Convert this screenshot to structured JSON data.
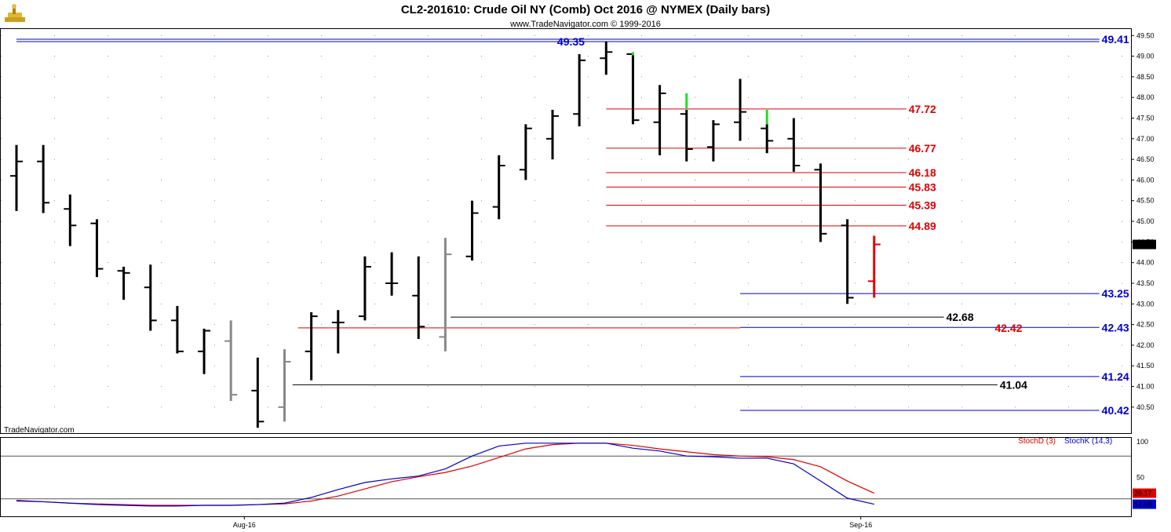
{
  "chart_data": {
    "type": "ohlc",
    "title": "CL2-201610:  Crude Oil NY (Comb) Oct 2016 @ NYMEX  (Daily bars)",
    "subtitle": "www.TradeNavigator.com © 1999-2016",
    "watermark": "TradeNavigator.com",
    "logo_icon": "trade-navigator-logo-icon",
    "price_axis": {
      "ylim": [
        40.25,
        49.6
      ],
      "ticks": [
        "40.50",
        "41.00",
        "41.50",
        "42.00",
        "42.50",
        "43.00",
        "43.50",
        "44.00",
        "44.50",
        "45.00",
        "45.50",
        "46.00",
        "46.50",
        "47.00",
        "47.50",
        "48.00",
        "48.50",
        "49.00",
        "49.50"
      ],
      "last_price": "44.44"
    },
    "x_axis": {
      "labels": [
        {
          "text": "Aug-16",
          "bar_index": 8.5
        },
        {
          "text": "Sep-16",
          "bar_index": 31.5
        }
      ]
    },
    "bars": [
      {
        "o": 46.1,
        "h": 46.85,
        "l": 45.25,
        "c": 46.45,
        "color": "#000000"
      },
      {
        "o": 46.45,
        "h": 46.85,
        "l": 45.2,
        "c": 45.45,
        "color": "#000000"
      },
      {
        "o": 45.3,
        "h": 45.65,
        "l": 44.4,
        "c": 44.9,
        "color": "#000000"
      },
      {
        "o": 44.95,
        "h": 45.05,
        "l": 43.65,
        "c": 43.85,
        "color": "#000000"
      },
      {
        "o": 43.8,
        "h": 43.9,
        "l": 43.1,
        "c": 43.75,
        "color": "#000000"
      },
      {
        "o": 43.4,
        "h": 43.95,
        "l": 42.35,
        "c": 42.6,
        "color": "#000000"
      },
      {
        "o": 42.6,
        "h": 42.95,
        "l": 41.8,
        "c": 41.85,
        "color": "#000000"
      },
      {
        "o": 41.85,
        "h": 42.4,
        "l": 41.3,
        "c": 42.35,
        "color": "#000000"
      },
      {
        "o": 42.1,
        "h": 42.6,
        "l": 40.65,
        "c": 40.8,
        "color": "#888888"
      },
      {
        "o": 40.9,
        "h": 41.7,
        "l": 40.0,
        "c": 40.15,
        "color": "#000000"
      },
      {
        "o": 40.5,
        "h": 41.9,
        "l": 40.15,
        "c": 41.6,
        "color": "#888888"
      },
      {
        "o": 41.85,
        "h": 42.8,
        "l": 41.15,
        "c": 42.7,
        "color": "#000000"
      },
      {
        "o": 42.55,
        "h": 42.85,
        "l": 41.8,
        "c": 42.55,
        "color": "#000000"
      },
      {
        "o": 42.7,
        "h": 44.15,
        "l": 42.6,
        "c": 43.9,
        "color": "#000000"
      },
      {
        "o": 43.5,
        "h": 44.25,
        "l": 43.2,
        "c": 43.5,
        "color": "#000000"
      },
      {
        "o": 43.2,
        "h": 44.15,
        "l": 42.15,
        "c": 42.45,
        "color": "#000000"
      },
      {
        "o": 42.2,
        "h": 44.6,
        "l": 41.85,
        "c": 44.2,
        "color": "#888888"
      },
      {
        "o": 44.15,
        "h": 45.5,
        "l": 44.05,
        "c": 45.2,
        "color": "#000000"
      },
      {
        "o": 45.35,
        "h": 46.6,
        "l": 45.05,
        "c": 46.35,
        "color": "#000000"
      },
      {
        "o": 46.25,
        "h": 47.35,
        "l": 46.0,
        "c": 47.25,
        "color": "#000000"
      },
      {
        "o": 47.0,
        "h": 47.7,
        "l": 46.5,
        "c": 47.55,
        "color": "#000000"
      },
      {
        "o": 47.6,
        "h": 49.05,
        "l": 47.3,
        "c": 48.9,
        "color": "#000000"
      },
      {
        "o": 48.95,
        "h": 49.35,
        "l": 48.55,
        "c": 49.1,
        "color": "#000000"
      },
      {
        "o": 49.05,
        "h": 49.05,
        "l": 47.35,
        "c": 47.45,
        "color": "#000000"
      },
      {
        "o": 47.4,
        "h": 48.3,
        "l": 46.6,
        "c": 48.1,
        "color": "#000000"
      },
      {
        "o": 47.6,
        "h": 47.7,
        "l": 46.45,
        "c": 46.75,
        "color": "#000000"
      },
      {
        "o": 46.8,
        "h": 47.45,
        "l": 46.45,
        "c": 47.35,
        "color": "#000000"
      },
      {
        "o": 47.4,
        "h": 48.45,
        "l": 46.95,
        "c": 47.65,
        "color": "#000000"
      },
      {
        "o": 47.25,
        "h": 47.35,
        "l": 46.65,
        "c": 46.95,
        "color": "#000000"
      },
      {
        "o": 47.0,
        "h": 47.5,
        "l": 46.2,
        "c": 46.35,
        "color": "#000000"
      },
      {
        "o": 46.25,
        "h": 46.4,
        "l": 44.5,
        "c": 44.7,
        "color": "#000000"
      },
      {
        "o": 44.9,
        "h": 45.05,
        "l": 43.0,
        "c": 43.15,
        "color": "#000000"
      },
      {
        "o": 43.55,
        "h": 44.65,
        "l": 43.15,
        "c": 44.44,
        "color": "#dd0000"
      }
    ],
    "green_marks": [
      {
        "bar_index": 23,
        "top": 49.1,
        "bottom": 49.02
      },
      {
        "bar_index": 25,
        "top": 48.1,
        "bottom": 47.72
      },
      {
        "bar_index": 28,
        "top": 47.7,
        "bottom": 47.35
      }
    ],
    "levels": [
      {
        "price": 49.41,
        "label": "49.41",
        "color": "#0000cc",
        "from": 0,
        "to": 40.4,
        "double": true
      },
      {
        "price": 49.35,
        "label": "49.35",
        "color": "#0000cc",
        "label_side": "left",
        "label_bar": 21.2
      },
      {
        "price": 47.72,
        "label": "47.72",
        "color": "#dd0000",
        "from": 22,
        "to": 33.2
      },
      {
        "price": 46.77,
        "label": "46.77",
        "color": "#dd0000",
        "from": 22,
        "to": 33.2
      },
      {
        "price": 46.18,
        "label": "46.18",
        "color": "#dd0000",
        "from": 22,
        "to": 33.2
      },
      {
        "price": 45.83,
        "label": "45.83",
        "color": "#dd0000",
        "from": 22,
        "to": 33.2
      },
      {
        "price": 45.39,
        "label": "45.39",
        "color": "#dd0000",
        "from": 22,
        "to": 33.2
      },
      {
        "price": 44.89,
        "label": "44.89",
        "color": "#dd0000",
        "from": 22,
        "to": 33.2
      },
      {
        "price": 43.25,
        "label": "43.25",
        "color": "#0000cc",
        "from": 27,
        "to": 40.4
      },
      {
        "price": 42.68,
        "label": "42.68",
        "color": "#000000",
        "from": 16.2,
        "to": 34.6
      },
      {
        "price": 42.43,
        "label": "42.43",
        "color": "#0000cc",
        "from": 27,
        "to": 40.4
      },
      {
        "price": 42.42,
        "label": "42.42",
        "color": "#dd0000",
        "from": 10.5,
        "to": 27,
        "label_bar": 36.5
      },
      {
        "price": 41.24,
        "label": "41.24",
        "color": "#0000cc",
        "from": 27,
        "to": 40.4
      },
      {
        "price": 41.04,
        "label": "41.04",
        "color": "#000000",
        "from": 10.3,
        "to": 36.6
      },
      {
        "price": 40.42,
        "label": "40.42",
        "color": "#0000cc",
        "from": 27,
        "to": 40.4
      }
    ],
    "stochastic": {
      "ylim": [
        0,
        100
      ],
      "ticks": [
        "100",
        "50"
      ],
      "hlines": [
        80,
        20
      ],
      "stoch_d": {
        "name": "StochD (3)",
        "color": "#dd0000",
        "last": "28.17",
        "values": [
          18,
          16,
          14,
          13,
          12,
          11,
          11,
          11,
          11,
          12,
          13,
          17,
          24,
          34,
          44,
          51,
          57,
          66,
          78,
          90,
          96,
          98,
          98,
          95,
          90,
          86,
          82,
          80,
          79,
          75,
          65,
          45,
          28
        ]
      },
      "stoch_k": {
        "name": "StochK (14,3)",
        "color": "#0000cc",
        "last": "12.58",
        "values": [
          17,
          16,
          14,
          12,
          11,
          10,
          10,
          11,
          11,
          12,
          14,
          22,
          33,
          43,
          48,
          52,
          62,
          80,
          94,
          98,
          98,
          98,
          98,
          91,
          87,
          80,
          79,
          77,
          77,
          69,
          45,
          21,
          12.58
        ]
      }
    }
  }
}
